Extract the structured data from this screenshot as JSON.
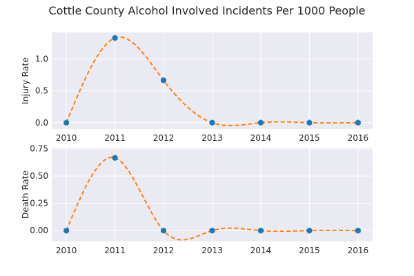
{
  "chart_data": {
    "type": "line",
    "title": "Cottle County Alcohol Involved Incidents Per 1000 People",
    "x": [
      2010,
      2011,
      2012,
      2013,
      2014,
      2015,
      2016
    ],
    "subplots": [
      {
        "ylabel": "Injury Rate",
        "values": [
          0,
          1.333,
          0.667,
          0,
          0,
          0,
          0
        ],
        "ylim": [
          -0.1,
          1.42
        ],
        "yticks": [
          "0.0",
          "0.5",
          "1.0"
        ],
        "ytick_values": [
          0,
          0.5,
          1.0
        ]
      },
      {
        "ylabel": "Death Rate",
        "values": [
          0,
          0.667,
          0,
          0,
          0,
          0,
          0
        ],
        "ylim": [
          -0.1,
          0.76
        ],
        "yticks": [
          "0.00",
          "0.25",
          "0.50",
          "0.75"
        ],
        "ytick_values": [
          0,
          0.25,
          0.5,
          0.75
        ]
      }
    ],
    "xticks": [
      "2010",
      "2011",
      "2012",
      "2013",
      "2014",
      "2015",
      "2016"
    ],
    "grid": true,
    "style": "seaborn-darkgrid",
    "markers": "data points with smooth dashed spline",
    "colors": {
      "points": "#1f77b4",
      "curve": "#ff7f0e",
      "background": "#eaeaf2"
    }
  }
}
